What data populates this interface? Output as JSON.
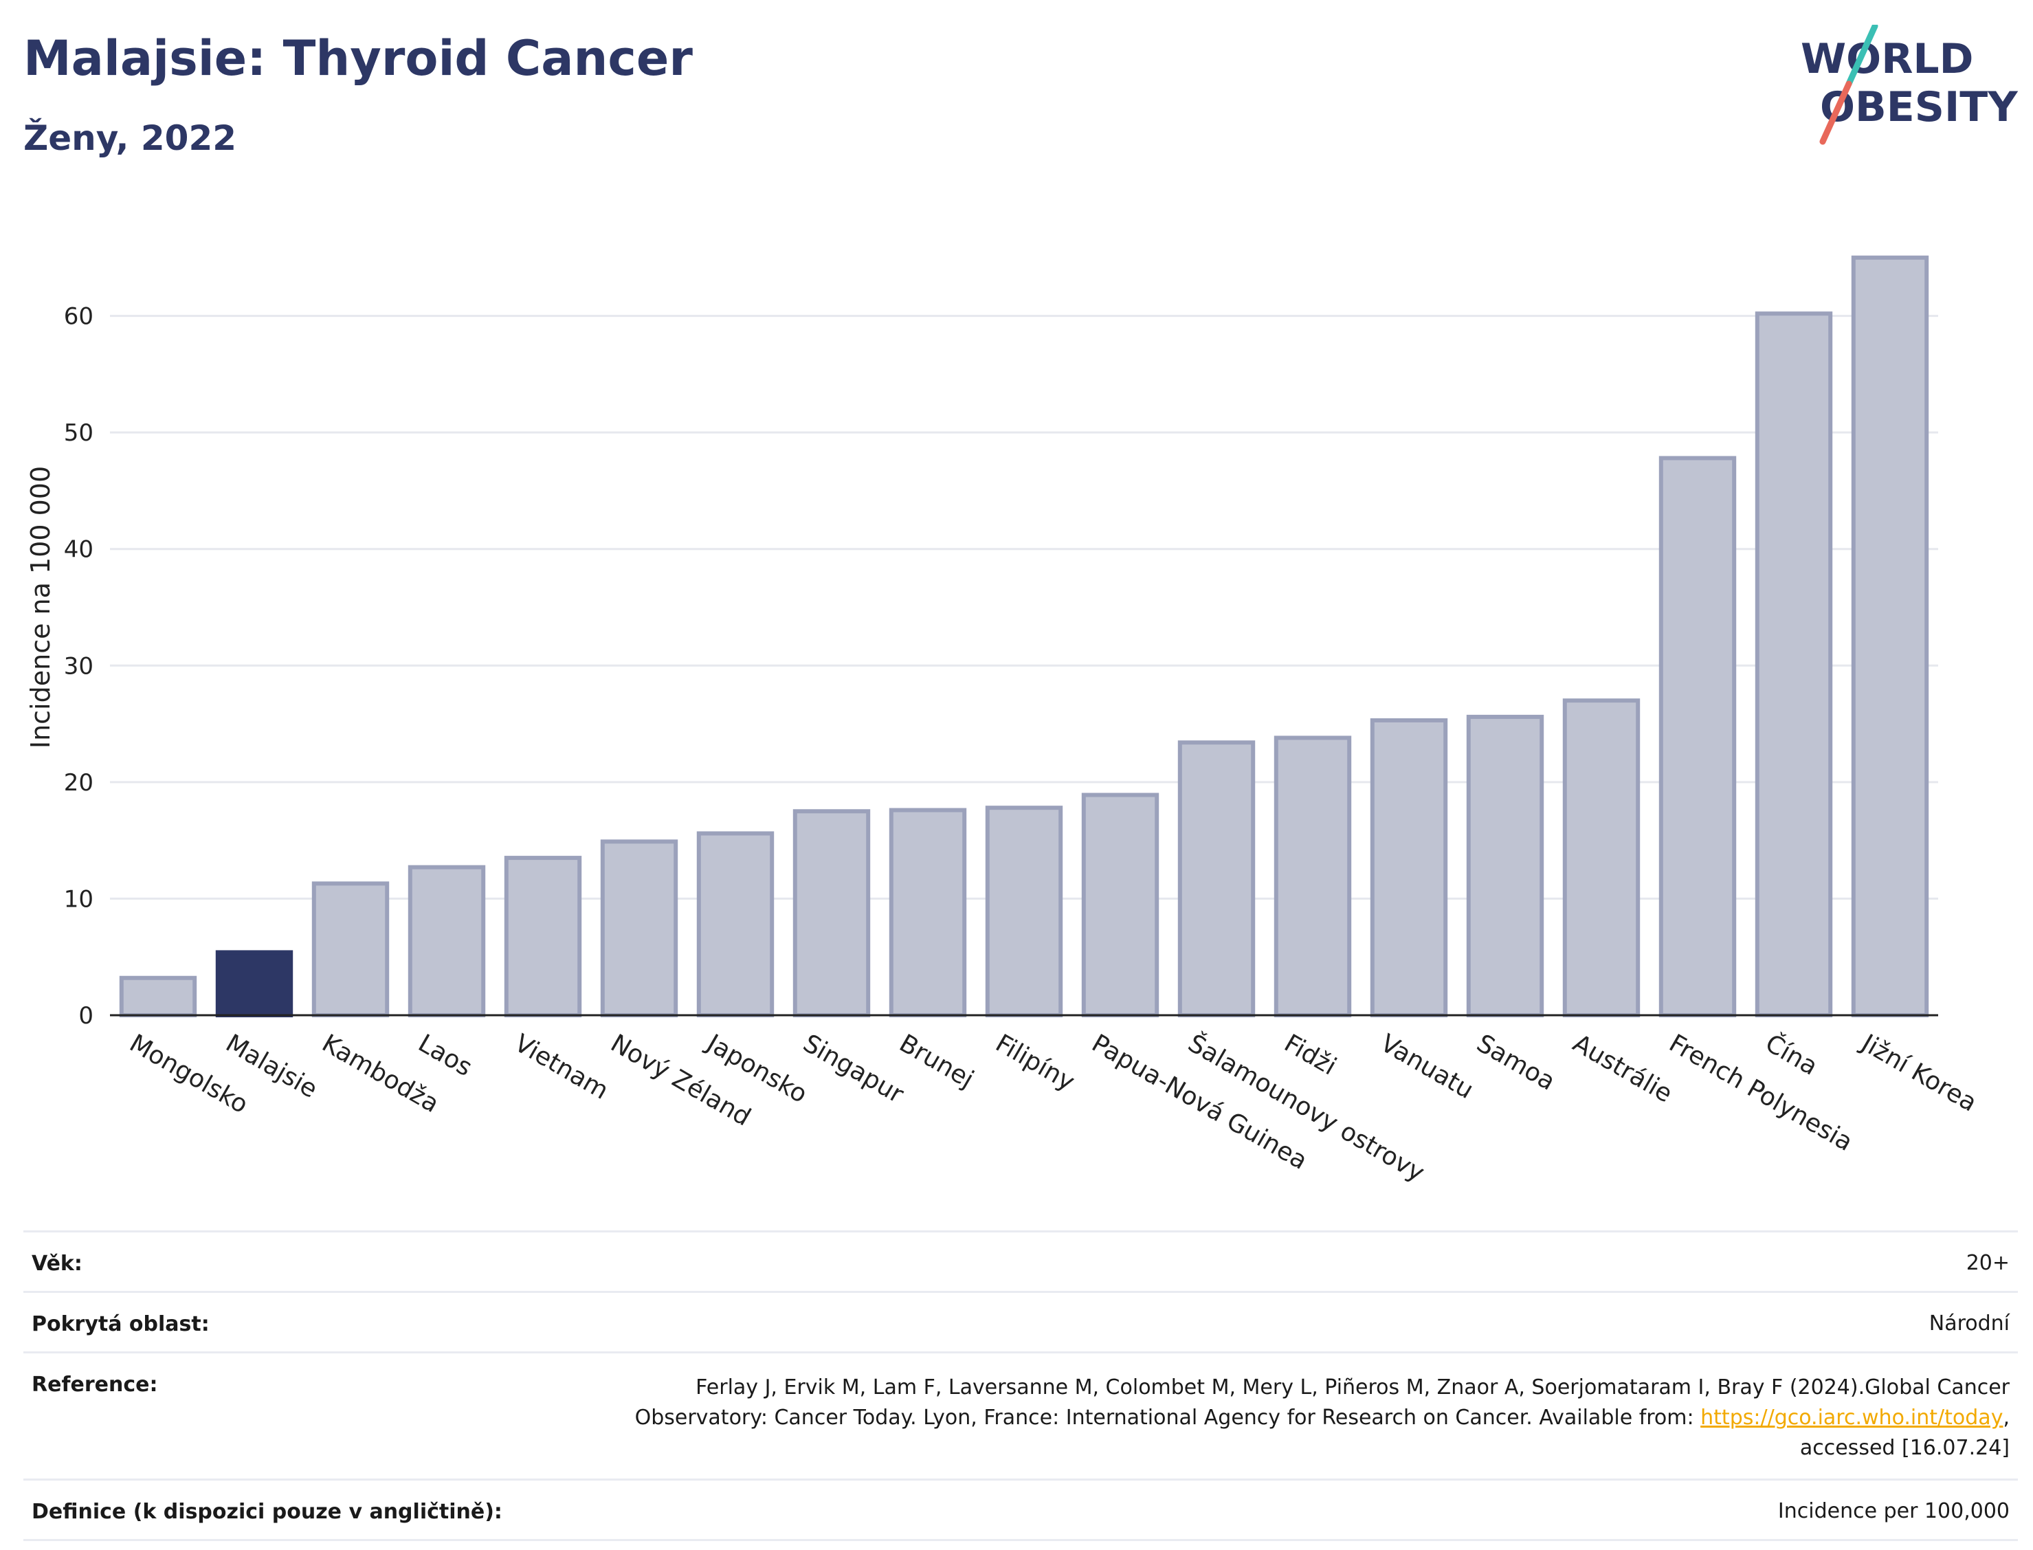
{
  "header": {
    "title": "Malajsie: Thyroid Cancer",
    "subtitle": "Ženy, 2022"
  },
  "logo": {
    "line1": "WORLD",
    "line2": "OBESITY",
    "colors": {
      "text": "#2d3765",
      "slash_top": "#3bbfb4",
      "slash_bottom": "#e8685a"
    }
  },
  "colors": {
    "highlight_bar": "#2d3765",
    "default_bar_fill": "#bfc3d2",
    "default_bar_stroke": "#9ba1bb",
    "grid": "#e6e8ee",
    "axis": "#222222"
  },
  "chart_data": {
    "type": "bar",
    "categories": [
      "Mongolsko",
      "Malajsie",
      "Kambodža",
      "Laos",
      "Vietnam",
      "Nový Zéland",
      "Japonsko",
      "Singapur",
      "Brunej",
      "Filipíny",
      "Papua-Nová Guinea",
      "Šalamounovy ostrovy",
      "Fidži",
      "Vanuatu",
      "Samoa",
      "Austrálie",
      "French Polynesia",
      "Čína",
      "Jižní Korea"
    ],
    "values": [
      3.2,
      5.4,
      11.3,
      12.7,
      13.5,
      14.9,
      15.6,
      17.5,
      17.6,
      17.8,
      18.9,
      23.4,
      23.8,
      25.3,
      25.6,
      27.0,
      47.8,
      60.2,
      65.0
    ],
    "highlight": "Malajsie",
    "ylabel": "Incidence na 100 000",
    "xlabel": "",
    "ylim": [
      0,
      70
    ],
    "yticks": [
      0,
      10,
      20,
      30,
      40,
      50,
      60
    ],
    "grid": true
  },
  "info": {
    "age": {
      "label": "Věk:",
      "value": "20+"
    },
    "coverage": {
      "label": "Pokrytá oblast:",
      "value": "Národní"
    },
    "reference": {
      "label": "Reference:",
      "line1": "Ferlay J, Ervik M, Lam F, Laversanne M, Colombet M, Mery L, Piñeros M, Znaor A, Soerjomataram I, Bray F (2024).Global Cancer",
      "line2_pre": "Observatory: Cancer Today. Lyon, France: International Agency for Research on Cancer. Available from: ",
      "link": "https://gco.iarc.who.int/today",
      "line2_post": ",",
      "line3": "accessed [16.07.24]"
    },
    "definition": {
      "label": "Definice (k dispozici pouze v angličtině):",
      "value": "Incidence per 100,000"
    }
  }
}
